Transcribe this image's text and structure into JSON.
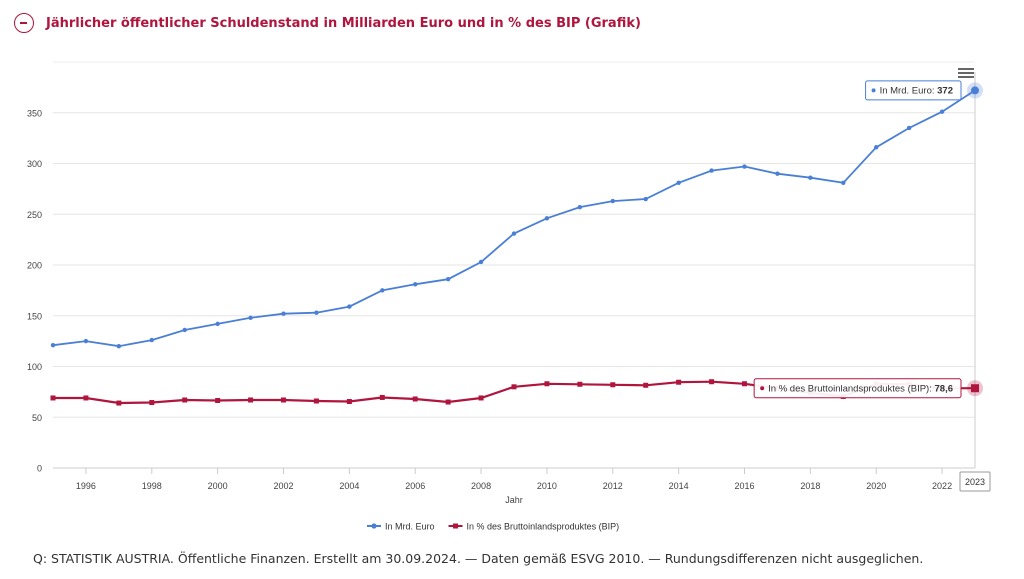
{
  "header": {
    "title": "Jährlicher öffentlicher Schuldenstand in Milliarden Euro und in % des BIP (Grafik)",
    "toggle_icon": "collapse-minus-icon"
  },
  "menu": {
    "icon": "hamburger-menu-icon"
  },
  "source_note": "Q: STATISTIK AUSTRIA. Öffentliche Finanzen. Erstellt am 30.09.2024. — Daten gemäß ESVG 2010. — Rundungsdifferenzen nicht ausgeglichen.",
  "colors": {
    "accent": "#b0153e",
    "series_euro": "#4a7fd6",
    "series_bip": "#b0153e"
  },
  "chart_data": {
    "type": "line",
    "xlabel": "Jahr",
    "ylabel": "",
    "x": [
      1995,
      1996,
      1997,
      1998,
      1999,
      2000,
      2001,
      2002,
      2003,
      2004,
      2005,
      2006,
      2007,
      2008,
      2009,
      2010,
      2011,
      2012,
      2013,
      2014,
      2015,
      2016,
      2017,
      2018,
      2019,
      2020,
      2021,
      2022,
      2023
    ],
    "xlim": [
      1995,
      2023
    ],
    "ylim": [
      0,
      400
    ],
    "x_ticks": [
      "1996",
      "1998",
      "2000",
      "2002",
      "2004",
      "2006",
      "2008",
      "2010",
      "2012",
      "2014",
      "2016",
      "2018",
      "2020",
      "2022"
    ],
    "y_ticks": [
      "0",
      "50",
      "100",
      "150",
      "200",
      "250",
      "300",
      "350"
    ],
    "grid": true,
    "legend_position": "bottom-center",
    "series": [
      {
        "name": "In Mrd. Euro",
        "marker": "circle",
        "values": [
          121,
          125,
          120,
          126,
          136,
          142,
          148,
          152,
          153,
          159,
          175,
          181,
          186,
          203,
          231,
          246,
          257,
          263,
          265,
          281,
          293,
          297,
          290,
          286,
          281,
          316,
          335,
          351,
          372
        ]
      },
      {
        "name": "In % des Bruttoinlandsproduktes (BIP)",
        "marker": "square",
        "values": [
          69,
          69,
          64,
          64.5,
          67,
          66.5,
          67,
          67,
          66,
          65.5,
          69.5,
          68,
          65,
          69,
          80,
          83,
          82.5,
          82,
          81.5,
          84.5,
          85,
          83,
          78.5,
          74,
          70.5,
          82.9,
          82.5,
          78.5,
          78.6
        ]
      }
    ],
    "tooltips": [
      {
        "label": "In Mrd. Euro: ",
        "value": "372"
      },
      {
        "label": "In % des Bruttoinlandsproduktes (BIP): ",
        "value": "78,6"
      }
    ],
    "crosshair_label": "2023"
  }
}
